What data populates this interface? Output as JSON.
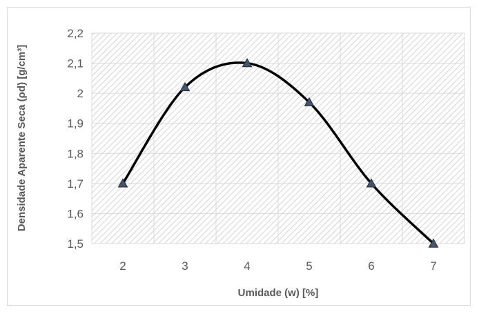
{
  "chart_data": {
    "type": "line",
    "title": "",
    "xlabel": "Umidade (w) [%]",
    "ylabel": "Densidade Aparente Seca (ρd) [g/cm³]",
    "x": [
      2,
      3,
      4,
      5,
      6,
      7
    ],
    "series": [
      {
        "values": [
          1.7,
          2.02,
          2.1,
          1.97,
          1.7,
          1.5
        ]
      }
    ],
    "xlim": [
      1.5,
      7.5
    ],
    "ylim": [
      1.5,
      2.2
    ],
    "x_ticks": [
      "2",
      "3",
      "4",
      "5",
      "6",
      "7"
    ],
    "y_ticks": [
      "1,5",
      "1,6",
      "1,7",
      "1,8",
      "1,9",
      "2",
      "2,1",
      "2,2"
    ],
    "grid": true,
    "smooth": true,
    "marker": "triangle",
    "colors": {
      "line": "#000000",
      "marker_fill": "#44546a",
      "grid": "#d9d9d9",
      "text": "#595959",
      "hatch": "#c8c8c8"
    }
  }
}
